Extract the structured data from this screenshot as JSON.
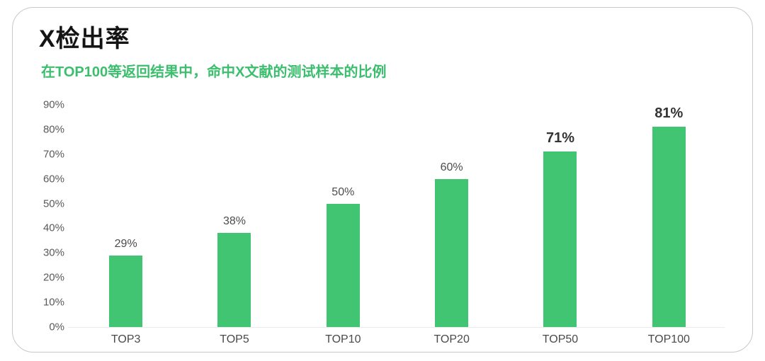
{
  "card": {
    "title": "X检出率",
    "subtitle": "在TOP100等返回结果中，命中X文献的测试样本的比例"
  },
  "colors": {
    "bar_fill": "#41C573",
    "subtitle_text": "#3DBE6E",
    "title_text": "#141414",
    "y_tick_text": "#595959",
    "x_tick_text": "#4A4A4A",
    "value_label_text": "#4C4C4C",
    "value_label_emphasis_text": "#333333",
    "baseline": "#EBEBEB",
    "card_border": "#C8C8C8",
    "card_background": "#FFFFFF"
  },
  "chart_data": {
    "type": "bar",
    "title": "X检出率",
    "subtitle": "在TOP100等返回结果中，命中X文献的测试样本的比例",
    "categories": [
      "TOP3",
      "TOP5",
      "TOP10",
      "TOP20",
      "TOP50",
      "TOP100"
    ],
    "values": [
      29,
      38,
      50,
      60,
      71,
      81
    ],
    "value_labels": [
      "29%",
      "38%",
      "50%",
      "60%",
      "71%",
      "81%"
    ],
    "emphasized_labels": [
      false,
      false,
      false,
      false,
      true,
      true
    ],
    "y_ticks": [
      "0%",
      "10%",
      "20%",
      "30%",
      "40%",
      "50%",
      "60%",
      "70%",
      "80%",
      "90%"
    ],
    "ylim": [
      0,
      90
    ],
    "grid": false,
    "legend": "none",
    "bar_color": "#41C573"
  }
}
